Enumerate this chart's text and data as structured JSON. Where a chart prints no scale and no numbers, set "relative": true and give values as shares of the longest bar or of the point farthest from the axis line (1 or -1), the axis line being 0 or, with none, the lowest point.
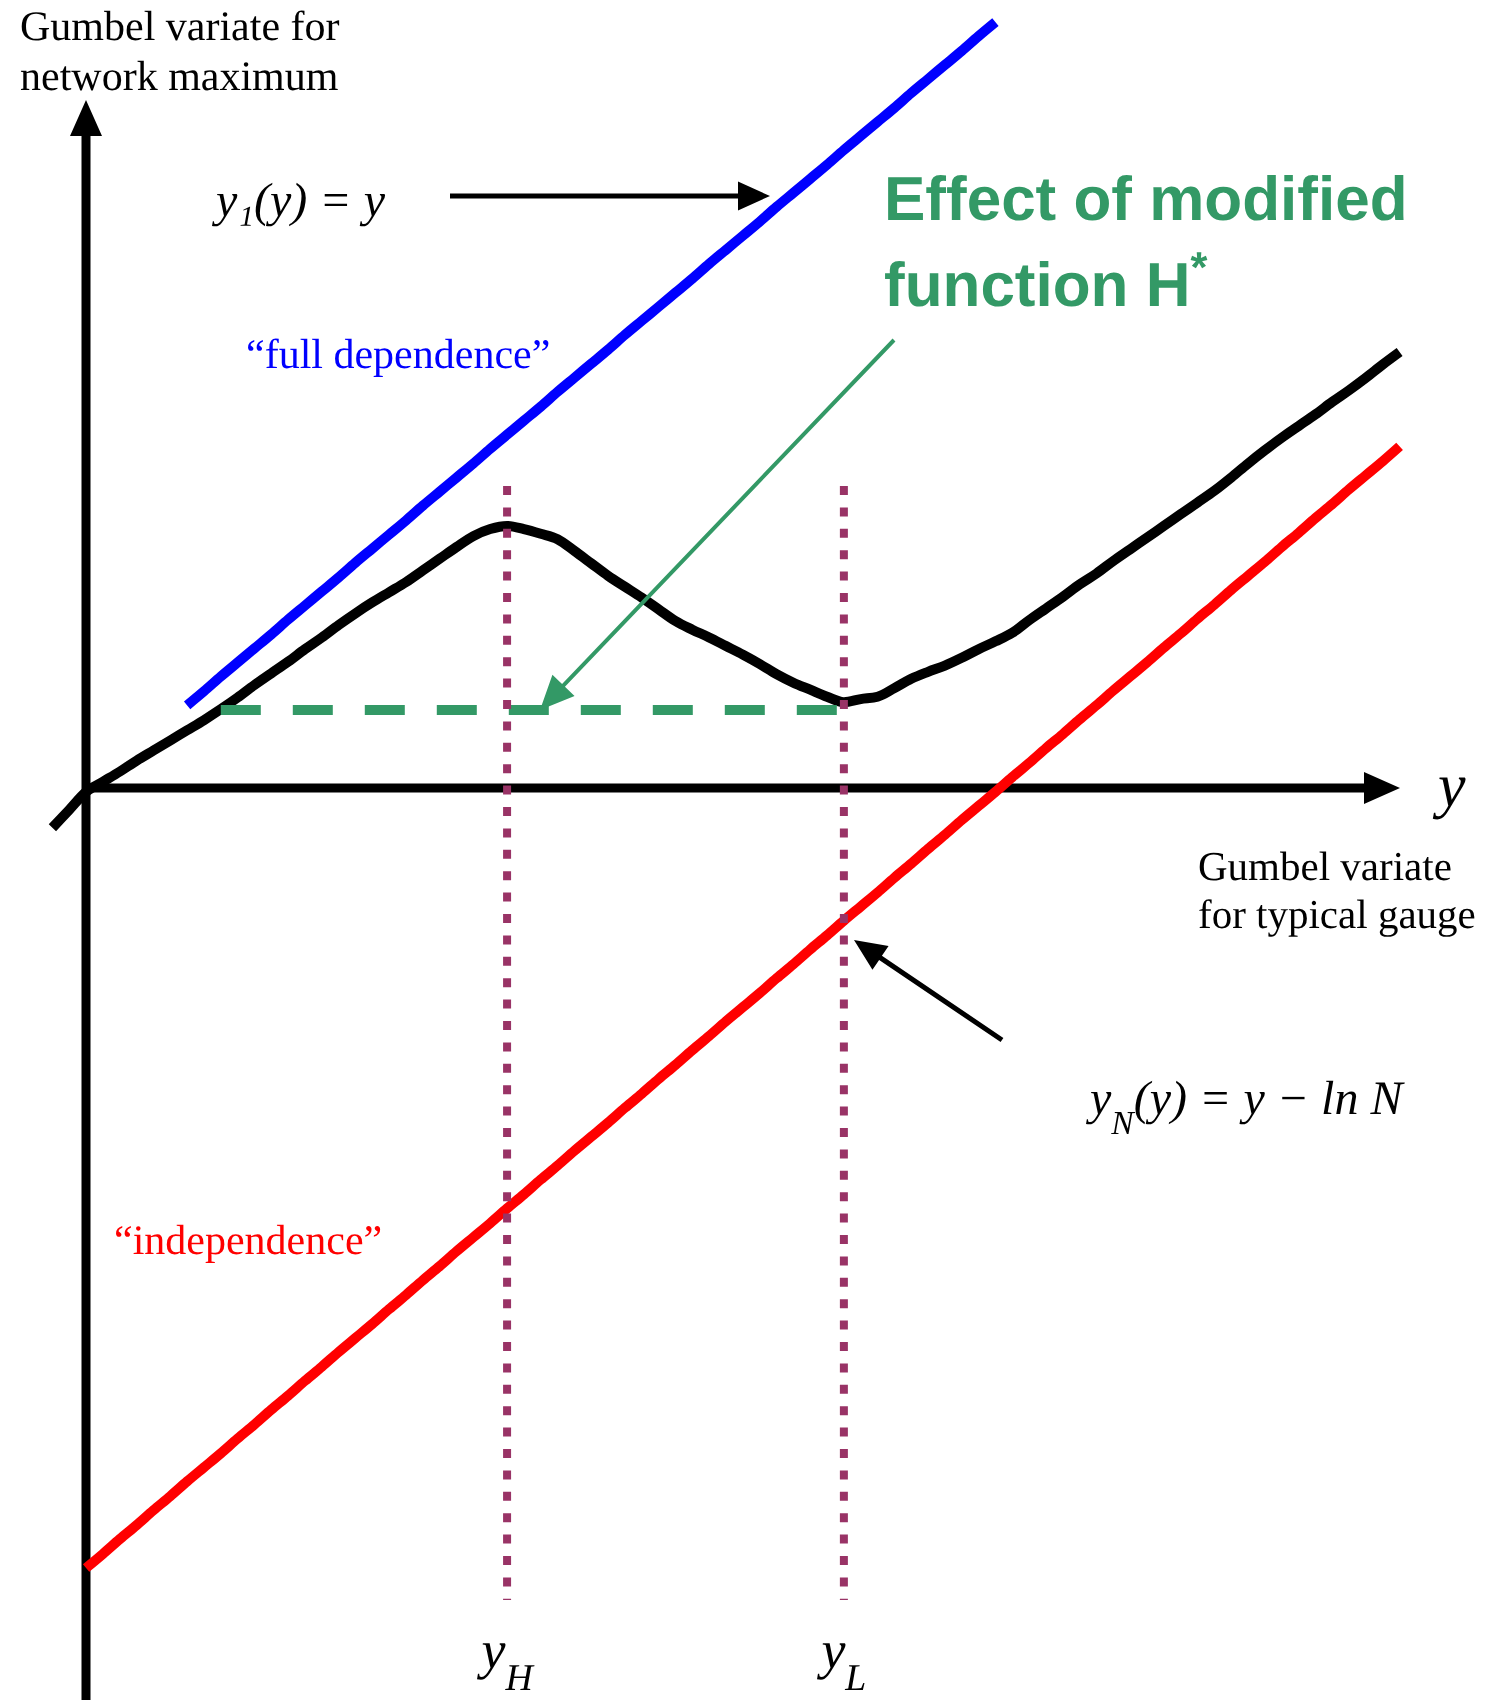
{
  "chart_data": {
    "type": "line",
    "relative": true,
    "xlabel": "Gumbel variate for typical gauge",
    "ylabel": "Gumbel variate for network maximum",
    "annotations": [
      "y₁(y) = y",
      "Effect of modified function H$^{*}$",
      "y$_{N}$(y) = y − ln N",
      "y"
    ],
    "categories": [
      null,
      null,
      null,
      null,
      null,
      null,
      null,
      null,
      null,
      null,
      null,
      null,
      null,
      null,
      null,
      null,
      null,
      null,
      null,
      null,
      null,
      null,
      null,
      null,
      null,
      null,
      null,
      "y$_{H}$",
      null,
      null,
      null,
      null,
      null,
      null,
      null,
      null,
      null,
      null,
      null,
      null,
      null,
      null,
      null,
      null,
      null,
      null,
      null,
      "y$_{L}$",
      null,
      null,
      null,
      null,
      null,
      null,
      null,
      null,
      null,
      null,
      null,
      null,
      null,
      null,
      null,
      null,
      null,
      null,
      null,
      null,
      null,
      null,
      null,
      null,
      null,
      null,
      null,
      null,
      null,
      null,
      null,
      null,
      null
    ],
    "series": [
      {
        "name": "“full dependence”",
        "color": "#0000ff",
        "values": [
          null,
          null,
          null,
          null,
          null,
          null,
          null,
          null,
          0.106,
          0.124,
          0.143,
          0.161,
          0.179,
          0.197,
          0.216,
          0.234,
          0.252,
          0.27,
          0.289,
          0.307,
          0.325,
          0.343,
          0.362,
          0.38,
          0.398,
          0.416,
          0.435,
          0.453,
          0.471,
          0.489,
          0.508,
          0.526,
          0.544,
          0.562,
          0.581,
          0.599,
          0.617,
          0.635,
          0.653,
          0.672,
          0.69,
          0.708,
          0.726,
          0.745,
          0.763,
          0.781,
          0.799,
          0.818,
          0.836,
          0.854,
          0.872,
          0.891,
          0.909,
          0.927,
          0.945,
          0.964,
          0.982,
          null,
          null,
          null,
          null,
          null,
          null,
          null,
          null,
          null,
          null,
          null,
          null,
          null,
          null,
          null,
          null,
          null,
          null,
          null,
          null,
          null,
          null,
          null,
          null
        ]
      },
      {
        "color": "#000000",
        "values": [
          -0.051,
          -0.028,
          -0.005,
          0.008,
          0.021,
          0.035,
          0.048,
          0.061,
          0.074,
          0.087,
          0.101,
          0.116,
          0.132,
          0.147,
          0.162,
          0.178,
          0.193,
          0.209,
          0.224,
          0.238,
          0.251,
          0.264,
          0.279,
          0.294,
          0.309,
          0.323,
          0.332,
          0.336,
          0.332,
          0.326,
          0.319,
          0.304,
          0.288,
          0.272,
          0.258,
          0.244,
          0.229,
          0.214,
          0.203,
          0.193,
          0.182,
          0.171,
          0.159,
          0.146,
          0.135,
          0.126,
          0.117,
          0.11,
          0.114,
          0.117,
          0.128,
          0.14,
          0.149,
          0.157,
          0.167,
          0.178,
          0.188,
          0.199,
          0.215,
          0.23,
          0.245,
          0.261,
          0.275,
          0.291,
          0.306,
          0.321,
          0.336,
          0.351,
          0.366,
          0.381,
          0.398,
          0.416,
          0.433,
          0.449,
          0.464,
          0.479,
          0.495,
          0.51,
          0.526,
          0.543,
          0.559
        ]
      },
      {
        "name": "“independence”",
        "color": "#ff0000",
        "values": [
          null,
          null,
          -1.0,
          -0.982,
          -0.963,
          -0.945,
          -0.926,
          -0.908,
          -0.889,
          -0.871,
          -0.853,
          -0.834,
          -0.816,
          -0.797,
          -0.779,
          -0.76,
          -0.742,
          -0.723,
          -0.705,
          -0.687,
          -0.668,
          -0.65,
          -0.631,
          -0.613,
          -0.594,
          -0.576,
          -0.558,
          -0.539,
          -0.521,
          -0.502,
          -0.484,
          -0.465,
          -0.447,
          -0.429,
          -0.41,
          -0.392,
          -0.373,
          -0.355,
          -0.336,
          -0.318,
          -0.299,
          -0.281,
          -0.263,
          -0.244,
          -0.226,
          -0.207,
          -0.189,
          -0.17,
          -0.152,
          -0.134,
          -0.115,
          -0.097,
          -0.078,
          -0.06,
          -0.041,
          -0.023,
          -0.005,
          0.014,
          0.032,
          0.051,
          0.069,
          0.088,
          0.106,
          0.125,
          0.143,
          0.161,
          0.18,
          0.198,
          0.217,
          0.235,
          0.254,
          0.272,
          0.29,
          0.309,
          0.327,
          0.346,
          0.364,
          0.383,
          0.401,
          0.419,
          0.438
        ]
      },
      {
        "color": "#339966",
        "line_style": "dashed",
        "values": [
          null,
          null,
          null,
          null,
          null,
          null,
          null,
          null,
          null,
          null,
          0.1,
          0.1,
          0.1,
          0.1,
          0.1,
          0.1,
          0.1,
          0.1,
          0.1,
          0.1,
          0.1,
          0.1,
          0.1,
          0.1,
          0.1,
          0.1,
          0.1,
          0.1,
          0.1,
          0.1,
          0.1,
          0.1,
          0.1,
          0.1,
          0.1,
          0.1,
          0.1,
          0.1,
          0.1,
          0.1,
          0.1,
          0.1,
          0.1,
          0.1,
          0.1,
          0.1,
          0.1,
          0.1,
          null,
          null,
          null,
          null,
          null,
          null,
          null,
          null,
          null,
          null,
          null,
          null,
          null,
          null,
          null,
          null,
          null,
          null,
          null,
          null,
          null,
          null,
          null,
          null,
          null,
          null,
          null,
          null,
          null,
          null,
          null,
          null,
          null
        ]
      }
    ],
    "ref_lines": [
      {
        "axis": "x",
        "value": "y$_{H}$",
        "color": "#993366",
        "line_style": "dotted"
      },
      {
        "axis": "x",
        "value": "y$_{L}$",
        "color": "#993366",
        "line_style": "dotted"
      }
    ]
  }
}
